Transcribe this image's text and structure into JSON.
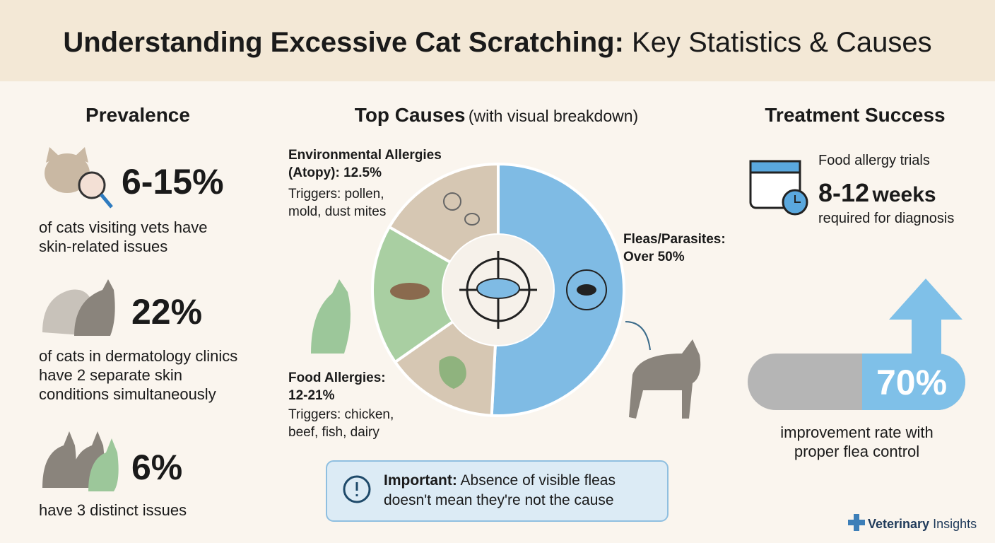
{
  "header": {
    "title_strong": "Understanding Excessive Cat Scratching:",
    "title_rest": "Key Statistics & Causes"
  },
  "prevalence": {
    "heading": "Prevalence",
    "stats": [
      {
        "value": "6-15%",
        "text": "of cats visiting vets have skin-related issues"
      },
      {
        "value": "22%",
        "text": "of cats in dermatology clinics have 2 separate skin conditions simultaneously"
      },
      {
        "value": "6%",
        "text": "have 3 distinct issues"
      }
    ]
  },
  "causes": {
    "heading": "Top Causes",
    "heading_note": "(with visual breakdown)",
    "environmental": {
      "label": "Environmental Allergies (Atopy): 12.5%",
      "detail": "Triggers: pollen, mold, dust mites"
    },
    "food": {
      "label": "Food Allergies: 12-21%",
      "detail": "Triggers: chicken, beef, fish, dairy"
    },
    "fleas": {
      "label": "Fleas/Parasites: Over 50%"
    },
    "note": {
      "strong": "Important:",
      "text": "Absence of visible fleas doesn't mean they're not the cause"
    }
  },
  "treatment": {
    "heading": "Treatment Success",
    "trial_label": "Food allergy trials",
    "trial_value": "8-12",
    "trial_unit": "weeks",
    "trial_text": "required for diagnosis",
    "improvement_value": "70%",
    "improvement_text": "improvement rate with proper flea control"
  },
  "footer": {
    "brand_strong": "Veterinary",
    "brand": "Insights"
  }
}
